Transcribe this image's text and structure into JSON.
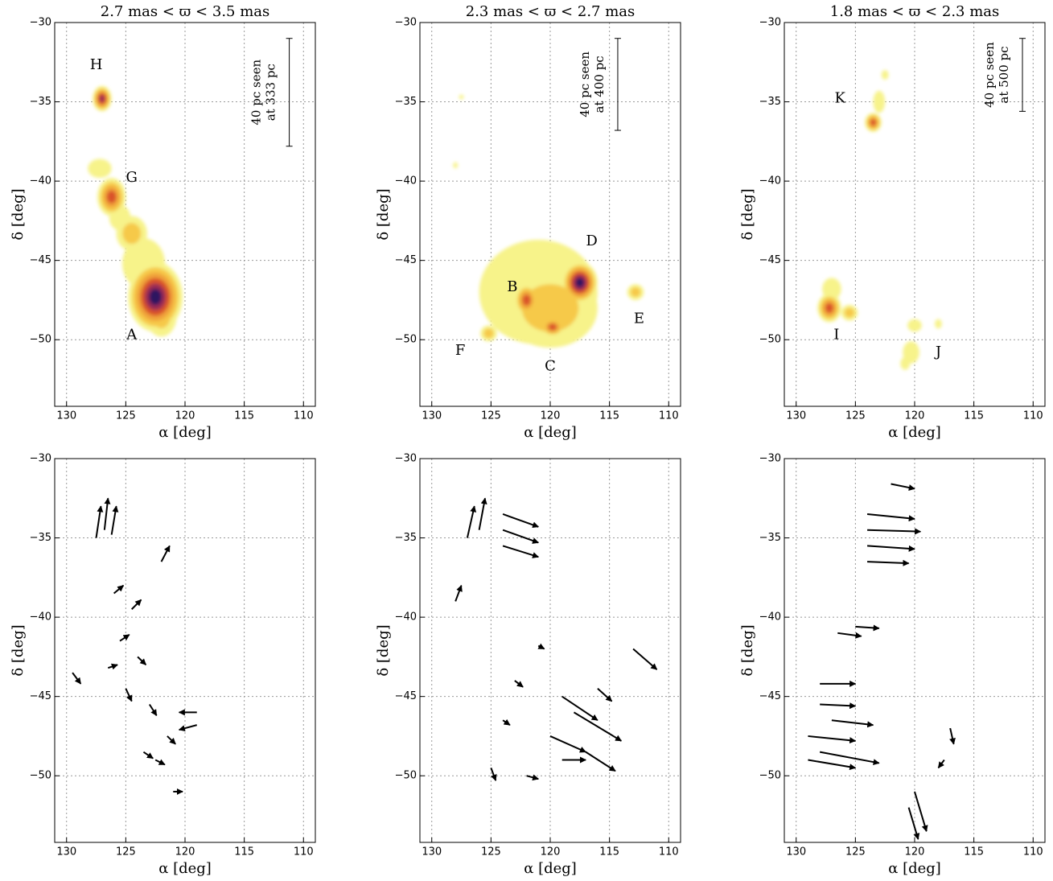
{
  "chart_data": [
    {
      "type": "density",
      "title": "2.7 mas < ϖ < 3.5 mas",
      "xlabel": "α [deg]",
      "ylabel": "δ [deg]",
      "xlim": [
        131,
        109
      ],
      "ylim": [
        -54.2,
        -30
      ],
      "xticks": [
        130,
        125,
        120,
        115,
        110
      ],
      "yticks": [
        {
          "value": -30,
          "label": "−30"
        },
        {
          "value": -35,
          "label": "−35"
        },
        {
          "value": -40,
          "label": "−40"
        },
        {
          "value": -45,
          "label": "−45"
        },
        {
          "value": -50,
          "label": "−50"
        }
      ],
      "grid": true,
      "colors": [
        "#f7f38a",
        "#f6c94a",
        "#f0a33a",
        "#d9532a",
        "#9a2a55",
        "#2e1660"
      ],
      "clusters": {
        "x": [
          127,
          127.2,
          126.2,
          124.5,
          125.5,
          123.5,
          122.5,
          122
        ],
        "y": [
          -34.8,
          -39.2,
          -41,
          -43.3,
          -42.3,
          -45.2,
          -47.3,
          -48.5
        ],
        "rx": [
          0.8,
          1,
          1.2,
          1.3,
          0.9,
          1.8,
          2.3,
          1.3
        ],
        "ry": [
          0.8,
          0.6,
          1.2,
          1.1,
          0.8,
          1.6,
          2.2,
          1.3
        ],
        "level": [
          5,
          1,
          4,
          2,
          1,
          1,
          6,
          2
        ]
      },
      "annotations": [
        {
          "text": "H",
          "x": 127.5,
          "y": -32.7
        },
        {
          "text": "G",
          "x": 124.5,
          "y": -39.8
        },
        {
          "text": "A",
          "x": 124.5,
          "y": -49.7
        }
      ],
      "scalebar": {
        "text": [
          "40 pc seen",
          "at 333 pc"
        ],
        "x": 111.2,
        "y": [
          -31,
          -37.8
        ]
      }
    },
    {
      "type": "density",
      "title": "2.3 mas < ϖ < 2.7 mas",
      "xlabel": "α [deg]",
      "ylabel": "δ [deg]",
      "xlim": [
        131,
        109
      ],
      "ylim": [
        -54.2,
        -30
      ],
      "xticks": [
        130,
        125,
        120,
        115,
        110
      ],
      "yticks": [
        {
          "value": -30,
          "label": "−30"
        },
        {
          "value": -35,
          "label": "−35"
        },
        {
          "value": -40,
          "label": "−40"
        },
        {
          "value": -45,
          "label": "−45"
        },
        {
          "value": -50,
          "label": "−50"
        }
      ],
      "grid": true,
      "colors": [
        "#f7f38a",
        "#f6c94a",
        "#f0a33a",
        "#d9532a",
        "#9a2a55",
        "#2e1660"
      ],
      "clusters": {
        "x": [
          121,
          120,
          122,
          117.5,
          119.8,
          125.2,
          112.8,
          127.5,
          128
        ],
        "y": [
          -47,
          -48,
          -47.5,
          -46.4,
          -49.2,
          -49.6,
          -47,
          -34.7,
          -39
        ],
        "rx": [
          5,
          4,
          1,
          1.5,
          1,
          0.7,
          0.7,
          0.2,
          0.2
        ],
        "ry": [
          3.3,
          2.5,
          1,
          1.3,
          0.6,
          0.5,
          0.5,
          0.15,
          0.2
        ],
        "level": [
          1,
          2,
          4,
          6,
          4,
          2,
          2,
          1,
          1
        ]
      },
      "annotations": [
        {
          "text": "D",
          "x": 116.5,
          "y": -43.8
        },
        {
          "text": "B",
          "x": 123.2,
          "y": -46.7
        },
        {
          "text": "E",
          "x": 112.5,
          "y": -48.7
        },
        {
          "text": "F",
          "x": 127.6,
          "y": -50.7
        },
        {
          "text": "C",
          "x": 120,
          "y": -51.7
        }
      ],
      "scalebar": {
        "text": [
          "40 pc seen",
          "at 400 pc"
        ],
        "x": 114.3,
        "y": [
          -31,
          -36.8
        ]
      }
    },
    {
      "type": "density",
      "title": "1.8 mas < ϖ < 2.3 mas",
      "xlabel": "α [deg]",
      "ylabel": "δ [deg]",
      "xlim": [
        131,
        109
      ],
      "ylim": [
        -54.2,
        -30
      ],
      "xticks": [
        130,
        125,
        120,
        115,
        110
      ],
      "yticks": [
        {
          "value": -30,
          "label": "−30"
        },
        {
          "value": -35,
          "label": "−35"
        },
        {
          "value": -40,
          "label": "−40"
        },
        {
          "value": -45,
          "label": "−45"
        },
        {
          "value": -50,
          "label": "−50"
        }
      ],
      "grid": true,
      "colors": [
        "#f7f38a",
        "#f6c94a",
        "#f0a33a",
        "#d9532a",
        "#9a2a55",
        "#2e1660"
      ],
      "clusters": {
        "x": [
          123.5,
          123,
          122.5,
          127.2,
          125.5,
          127,
          120,
          120.3,
          120.8,
          118
        ],
        "y": [
          -36.3,
          -35,
          -33.3,
          -48,
          -48.3,
          -46.8,
          -49.1,
          -50.8,
          -51.5,
          -49
        ],
        "rx": [
          0.7,
          0.5,
          0.3,
          1,
          0.7,
          0.8,
          0.6,
          0.7,
          0.4,
          0.3
        ],
        "ry": [
          0.6,
          0.7,
          0.3,
          0.9,
          0.5,
          0.7,
          0.4,
          0.7,
          0.4,
          0.3
        ],
        "level": [
          4,
          1,
          1,
          4,
          2,
          1,
          1,
          1,
          1,
          1
        ]
      },
      "annotations": [
        {
          "text": "K",
          "x": 126.3,
          "y": -34.8
        },
        {
          "text": "I",
          "x": 126.6,
          "y": -49.7
        },
        {
          "text": "J",
          "x": 118,
          "y": -50.8
        }
      ],
      "scalebar": {
        "text": [
          "40 pc seen",
          "at 500 pc"
        ],
        "x": 110.9,
        "y": [
          -31,
          -35.6
        ]
      }
    },
    {
      "type": "vector",
      "xlabel": "α [deg]",
      "ylabel": "δ [deg]",
      "xlim": [
        131,
        109
      ],
      "ylim": [
        -54.2,
        -30
      ],
      "xticks": [
        130,
        125,
        120,
        115,
        110
      ],
      "yticks": [
        {
          "value": -30,
          "label": "−30"
        },
        {
          "value": -35,
          "label": "−35"
        },
        {
          "value": -40,
          "label": "−40"
        },
        {
          "value": -45,
          "label": "−45"
        },
        {
          "value": -50,
          "label": "−50"
        }
      ],
      "grid": true,
      "vectors": {
        "x": [
          127.5,
          126.8,
          126.2,
          122,
          126,
          124.5,
          125.5,
          124,
          129.5,
          125,
          123,
          121.5,
          122.5,
          119,
          119,
          121,
          126.5,
          123.5
        ],
        "y": [
          -35,
          -34.5,
          -34.8,
          -36.5,
          -38.5,
          -39.5,
          -41.5,
          -42.5,
          -43.5,
          -44.5,
          -45.5,
          -47.5,
          -49,
          -46,
          -46.8,
          -51,
          -43.2,
          -48.5
        ],
        "u": [
          -0.4,
          -0.3,
          -0.4,
          -0.7,
          -0.8,
          -0.8,
          -0.8,
          -0.7,
          -0.7,
          -0.5,
          -0.6,
          -0.7,
          -0.8,
          1.5,
          1.5,
          -0.8,
          -0.8,
          -0.8
        ],
        "v": [
          2,
          2,
          1.8,
          1,
          0.5,
          0.6,
          0.4,
          -0.5,
          -0.7,
          -0.8,
          -0.7,
          -0.5,
          -0.3,
          0,
          -0.3,
          0,
          0.2,
          -0.4
        ]
      }
    },
    {
      "type": "vector",
      "xlabel": "α [deg]",
      "ylabel": "δ [deg]",
      "xlim": [
        131,
        109
      ],
      "ylim": [
        -54.2,
        -30
      ],
      "xticks": [
        130,
        125,
        120,
        115,
        110
      ],
      "yticks": [
        {
          "value": -30,
          "label": "−30"
        },
        {
          "value": -35,
          "label": "−35"
        },
        {
          "value": -40,
          "label": "−40"
        },
        {
          "value": -45,
          "label": "−45"
        },
        {
          "value": -50,
          "label": "−50"
        }
      ],
      "grid": true,
      "vectors": {
        "x": [
          127,
          126,
          124,
          124,
          124,
          128,
          121,
          113,
          123,
          119,
          118,
          116,
          120,
          125,
          122,
          119,
          124,
          117
        ],
        "y": [
          -35,
          -34.5,
          -33.5,
          -34.5,
          -35.5,
          -39,
          -41.8,
          -42,
          -44,
          -45,
          -46,
          -44.5,
          -47.5,
          -49.5,
          -50,
          -49,
          -46.5,
          -48.5
        ],
        "u": [
          -0.6,
          -0.5,
          -3,
          -3,
          -3,
          -0.5,
          -0.5,
          -2,
          -0.7,
          -3,
          -4,
          -1.2,
          -3,
          -0.4,
          -1,
          -2,
          -0.6,
          -2.5
        ],
        "v": [
          2,
          2,
          -0.8,
          -0.8,
          -0.7,
          1,
          -0.2,
          -1.3,
          -0.4,
          -1.5,
          -1.8,
          -0.8,
          -1,
          -0.8,
          -0.2,
          0,
          -0.3,
          -1.2
        ]
      }
    },
    {
      "type": "vector",
      "xlabel": "α [deg]",
      "ylabel": "δ [deg]",
      "xlim": [
        131,
        109
      ],
      "ylim": [
        -54.2,
        -30
      ],
      "xticks": [
        130,
        125,
        120,
        115,
        110
      ],
      "yticks": [
        {
          "value": -30,
          "label": "−30"
        },
        {
          "value": -35,
          "label": "−35"
        },
        {
          "value": -40,
          "label": "−40"
        },
        {
          "value": -45,
          "label": "−45"
        },
        {
          "value": -50,
          "label": "−50"
        }
      ],
      "grid": true,
      "vectors": {
        "x": [
          122,
          124,
          124,
          124,
          124,
          125,
          126.5,
          128,
          128,
          129,
          128,
          127,
          129,
          120,
          120.5,
          117,
          117.5
        ],
        "y": [
          -31.6,
          -33.5,
          -34.5,
          -35.5,
          -36.5,
          -40.6,
          -41,
          -44.2,
          -45.5,
          -47.5,
          -48.5,
          -46.5,
          -49,
          -51,
          -52,
          -47,
          -49
        ],
        "u": [
          -2,
          -4,
          -4.5,
          -4,
          -3.5,
          -2,
          -2,
          -3,
          -3,
          -4,
          -5,
          -3.5,
          -4,
          -1,
          -0.8,
          -0.3,
          0.5
        ],
        "v": [
          -0.3,
          -0.3,
          -0.1,
          -0.2,
          -0.1,
          -0.1,
          -0.2,
          0,
          -0.1,
          -0.3,
          -0.7,
          -0.3,
          -0.5,
          -2.5,
          -2,
          -1,
          -0.5
        ]
      }
    }
  ]
}
